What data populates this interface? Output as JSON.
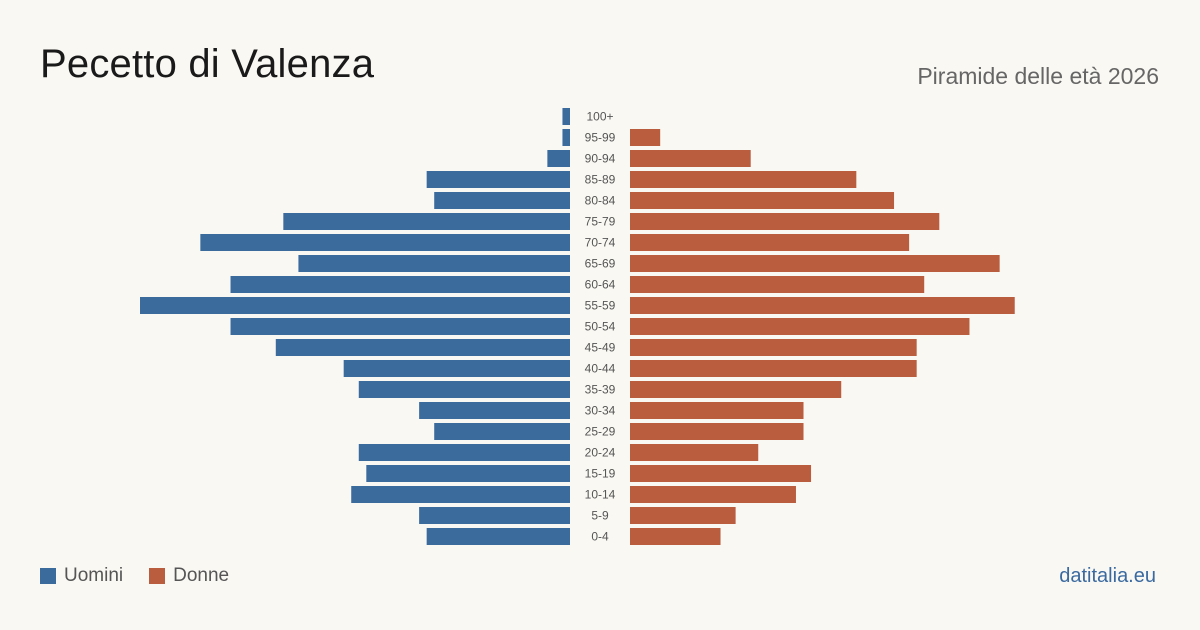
{
  "header": {
    "title": "Pecetto di Valenza",
    "subtitle": "Piramide delle età 2026"
  },
  "legend": {
    "men_label": "Uomini",
    "women_label": "Donne"
  },
  "source": "datitalia.eu",
  "colors": {
    "men": "#3b6a9c",
    "women": "#b95d3e",
    "background": "#faf8f3",
    "age_label": "#555555"
  },
  "chart_data": {
    "type": "bar",
    "orientation": "horizontal-pyramid",
    "categories": [
      "100+",
      "95-99",
      "90-94",
      "85-89",
      "80-84",
      "75-79",
      "70-74",
      "65-69",
      "60-64",
      "55-59",
      "50-54",
      "45-49",
      "40-44",
      "35-39",
      "30-34",
      "25-29",
      "20-24",
      "15-19",
      "10-14",
      "5-9",
      "0-4"
    ],
    "series": [
      {
        "name": "Uomini",
        "values": [
          1,
          1,
          3,
          19,
          18,
          38,
          49,
          36,
          45,
          57,
          45,
          39,
          30,
          28,
          20,
          18,
          28,
          27,
          29,
          20,
          19
        ]
      },
      {
        "name": "Donne",
        "values": [
          0,
          4,
          16,
          30,
          35,
          41,
          37,
          49,
          39,
          51,
          45,
          38,
          38,
          28,
          23,
          23,
          17,
          24,
          22,
          14,
          12
        ]
      }
    ],
    "title": "Piramide delle età 2026",
    "xlim": [
      0,
      57
    ],
    "grid": false,
    "legend_position": "bottom-left"
  }
}
